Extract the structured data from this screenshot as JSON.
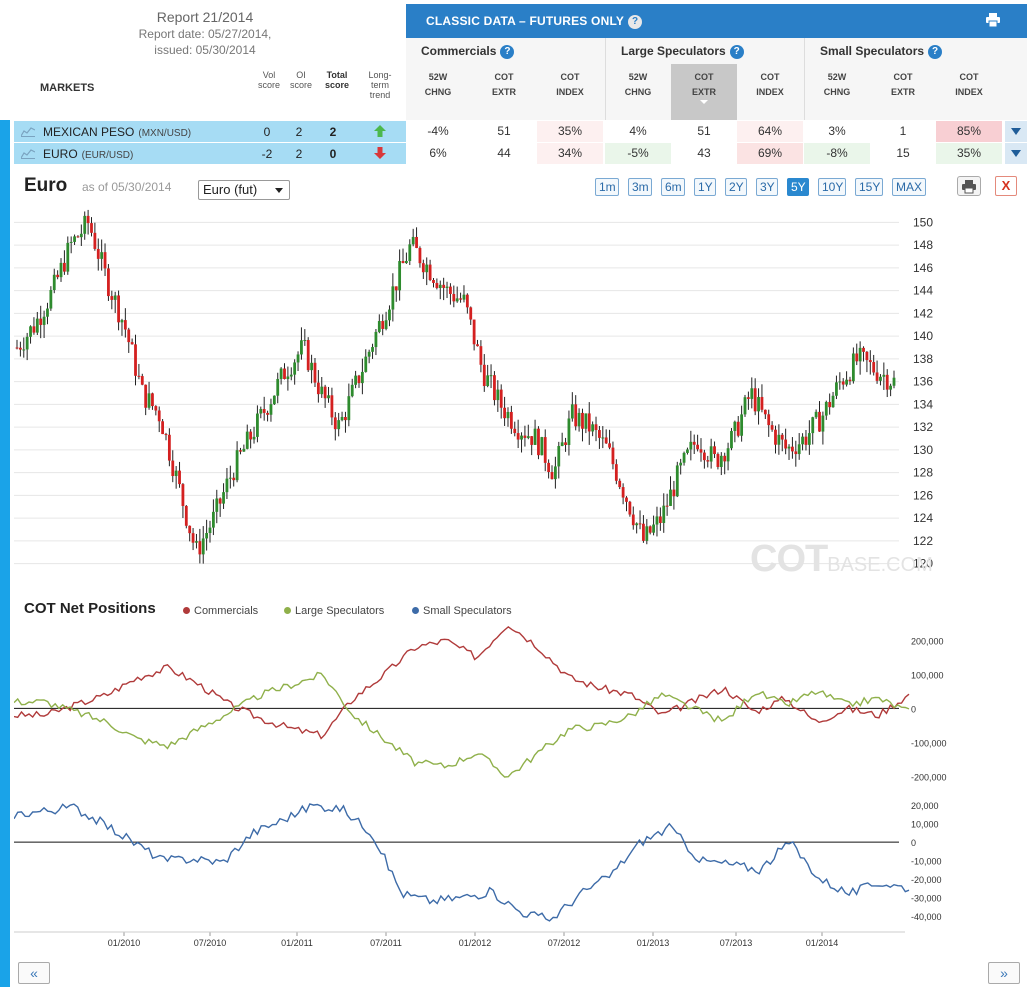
{
  "report": {
    "title": "Report 21/2014",
    "report_date": "Report date: 05/27/2014,",
    "issued": "issued: 05/30/2014"
  },
  "markets_label": "MARKETS",
  "score_headers": {
    "vol": [
      "Vol",
      "score"
    ],
    "oi": [
      "OI",
      "score"
    ],
    "total": [
      "Total",
      "score"
    ],
    "trend": [
      "Long-",
      "term",
      "trend"
    ]
  },
  "classic": {
    "title": "CLASSIC DATA – FUTURES ONLY",
    "groups": [
      "Commercials",
      "Large Speculators",
      "Small Speculators"
    ],
    "subheaders": [
      [
        "52W",
        "CHNG"
      ],
      [
        "COT",
        "EXTR"
      ],
      [
        "COT",
        "INDEX"
      ]
    ]
  },
  "rows": [
    {
      "name": "MEXICAN PESO",
      "pair": "(MXN/USD)",
      "vol": "0",
      "oi": "2",
      "total": "2",
      "trend": "up",
      "cells": [
        "-4%",
        "51",
        "35%",
        "4%",
        "51",
        "64%",
        "3%",
        "1",
        "85%"
      ]
    },
    {
      "name": "EURO",
      "pair": "(EUR/USD)",
      "vol": "-2",
      "oi": "2",
      "total": "0",
      "trend": "down",
      "cells": [
        "6%",
        "44",
        "34%",
        "-5%",
        "43",
        "69%",
        "-8%",
        "15",
        "35%"
      ]
    }
  ],
  "chart_header": {
    "market": "Euro",
    "as_of": "as of 05/30/2014",
    "contract_select": "Euro (fut)",
    "ranges": [
      "1m",
      "3m",
      "6m",
      "1Y",
      "2Y",
      "3Y",
      "5Y",
      "10Y",
      "15Y",
      "MAX"
    ],
    "active_range": "5Y",
    "close_label": "X"
  },
  "watermark": {
    "main": "COT",
    "sub": "BASE.COM"
  },
  "cot_section": {
    "title": "COT Net Positions",
    "legend": [
      "Commercials",
      "Large Speculators",
      "Small Speculators"
    ]
  },
  "colors": {
    "commercials": "#b03a3a",
    "large_speculators": "#8fb04a",
    "small_speculators": "#3d6ba8",
    "candle_up": "#2e8b2e",
    "candle_down": "#d42020",
    "accent": "#2a7fc7"
  },
  "nav": {
    "prev": "«",
    "next": "»"
  },
  "chart_data": [
    {
      "type": "candlestick",
      "series_name": "Euro",
      "ylim": [
        119,
        151
      ],
      "y_ticks": [
        120,
        122,
        124,
        126,
        128,
        130,
        132,
        134,
        136,
        138,
        140,
        142,
        144,
        146,
        148,
        150
      ],
      "x_ticks": [
        "01/2010",
        "07/2010",
        "01/2011",
        "07/2011",
        "01/2012",
        "07/2012",
        "01/2013",
        "07/2013",
        "01/2014"
      ],
      "closes": [
        139,
        141,
        144,
        148,
        150,
        145,
        141,
        135,
        133,
        127,
        121,
        124,
        128,
        131,
        134,
        137,
        139,
        135,
        132,
        136,
        140,
        144,
        148,
        146,
        144,
        143,
        137,
        134,
        132,
        131,
        128,
        133,
        132,
        130,
        126,
        122,
        124,
        128,
        131,
        129,
        131,
        135,
        132,
        130,
        131,
        133,
        136,
        138,
        137,
        136
      ],
      "grid": true
    },
    {
      "type": "line",
      "title": "COT Net Positions",
      "ylim": [
        -240000,
        260000
      ],
      "y_ticks": [
        200000,
        100000,
        0,
        -100000,
        -200000
      ],
      "y_tick_labels": [
        "200,000",
        "100,000",
        "0",
        "-100,000",
        "-200,000"
      ],
      "series": [
        {
          "name": "Commercials",
          "values": [
            -20000,
            -20000,
            10000,
            40000,
            90000,
            120000,
            70000,
            10000,
            -30000,
            -60000,
            -80000,
            30000,
            100000,
            180000,
            200000,
            150000,
            250000,
            180000,
            90000,
            60000,
            40000,
            -20000,
            20000,
            60000,
            -10000,
            30000,
            -40000,
            0,
            -20000,
            40000
          ]
        },
        {
          "name": "Large Speculators",
          "values": [
            20000,
            20000,
            -10000,
            -40000,
            -90000,
            -110000,
            -60000,
            -10000,
            40000,
            70000,
            100000,
            -20000,
            -90000,
            -160000,
            -170000,
            -130000,
            -200000,
            -130000,
            -60000,
            -50000,
            -20000,
            40000,
            0,
            -40000,
            50000,
            10000,
            50000,
            10000,
            30000,
            -10000
          ]
        }
      ]
    },
    {
      "type": "line",
      "ylim": [
        -45000,
        25000
      ],
      "y_ticks": [
        20000,
        10000,
        0,
        -10000,
        -20000,
        -30000,
        -40000
      ],
      "y_tick_labels": [
        "20,000",
        "10,000",
        "0",
        "-10,000",
        "-20,000",
        "-30,000",
        "-40,000"
      ],
      "series": [
        {
          "name": "Small Speculators",
          "values": [
            15000,
            17000,
            19000,
            10000,
            0,
            -10000,
            -9000,
            -11000,
            5000,
            12000,
            20000,
            18000,
            5000,
            -28000,
            -32000,
            -30000,
            -27000,
            -38000,
            -42000,
            -28000,
            -18000,
            0,
            8000,
            -10000,
            -12000,
            -15000,
            0,
            -20000,
            -28000,
            -22000,
            -25000
          ]
        }
      ]
    }
  ]
}
